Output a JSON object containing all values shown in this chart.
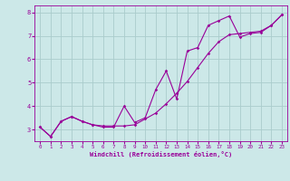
{
  "title": "",
  "xlabel": "Windchill (Refroidissement éolien,°C)",
  "ylabel": "",
  "bg_color": "#cce8e8",
  "grid_color": "#aacccc",
  "line_color": "#990099",
  "xlim": [
    -0.5,
    23.5
  ],
  "ylim": [
    2.5,
    8.3
  ],
  "xticks": [
    0,
    1,
    2,
    3,
    4,
    5,
    6,
    7,
    8,
    9,
    10,
    11,
    12,
    13,
    14,
    15,
    16,
    17,
    18,
    19,
    20,
    21,
    22,
    23
  ],
  "yticks": [
    3,
    4,
    5,
    6,
    7,
    8
  ],
  "series1_x": [
    0,
    1,
    2,
    3,
    4,
    5,
    6,
    7,
    8,
    9,
    10,
    11,
    12,
    13,
    14,
    15,
    16,
    17,
    18,
    19,
    20,
    21,
    22,
    23
  ],
  "series1_y": [
    3.1,
    2.7,
    3.35,
    3.55,
    3.35,
    3.2,
    3.1,
    3.1,
    4.0,
    3.3,
    3.5,
    4.7,
    5.5,
    4.3,
    6.35,
    6.5,
    7.45,
    7.65,
    7.85,
    6.95,
    7.1,
    7.15,
    7.45,
    7.9
  ],
  "series2_x": [
    0,
    1,
    2,
    3,
    4,
    5,
    6,
    7,
    8,
    9,
    10,
    11,
    12,
    13,
    14,
    15,
    16,
    17,
    18,
    19,
    20,
    21,
    22,
    23
  ],
  "series2_y": [
    3.1,
    2.7,
    3.35,
    3.55,
    3.35,
    3.2,
    3.15,
    3.15,
    3.15,
    3.2,
    3.45,
    3.7,
    4.1,
    4.55,
    5.05,
    5.65,
    6.25,
    6.75,
    7.05,
    7.1,
    7.15,
    7.2,
    7.45,
    7.9
  ]
}
